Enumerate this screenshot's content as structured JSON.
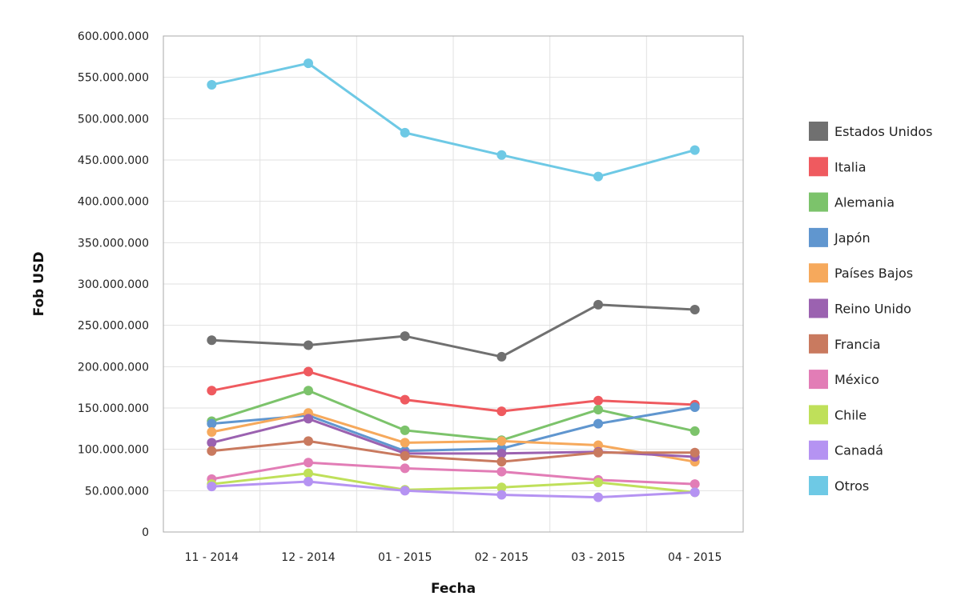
{
  "chart_data": {
    "type": "line",
    "xlabel": "Fecha",
    "ylabel": "Fob USD",
    "ylim": [
      0,
      600000000
    ],
    "y_ticks": [
      {
        "value": 0,
        "label": "0"
      },
      {
        "value": 50000000,
        "label": "50.000.000"
      },
      {
        "value": 100000000,
        "label": "100.000.000"
      },
      {
        "value": 150000000,
        "label": "150.000.000"
      },
      {
        "value": 200000000,
        "label": "200.000.000"
      },
      {
        "value": 250000000,
        "label": "250.000.000"
      },
      {
        "value": 300000000,
        "label": "300.000.000"
      },
      {
        "value": 350000000,
        "label": "350.000.000"
      },
      {
        "value": 400000000,
        "label": "400.000.000"
      },
      {
        "value": 450000000,
        "label": "450.000.000"
      },
      {
        "value": 500000000,
        "label": "500.000.000"
      },
      {
        "value": 550000000,
        "label": "550.000.000"
      },
      {
        "value": 600000000,
        "label": "600.000.000"
      }
    ],
    "categories": [
      "11 - 2014",
      "12 - 2014",
      "01 - 2015",
      "02 - 2015",
      "03 - 2015",
      "04 - 2015"
    ],
    "grid": true,
    "legend_position": "right",
    "series": [
      {
        "name": "Estados Unidos",
        "color": "#707070",
        "values": [
          232000000,
          226000000,
          237000000,
          212000000,
          275000000,
          269000000
        ]
      },
      {
        "name": "Italia",
        "color": "#ef5a5f",
        "values": [
          171000000,
          194000000,
          160000000,
          146000000,
          159000000,
          154000000
        ]
      },
      {
        "name": "Alemania",
        "color": "#7cc36b",
        "values": [
          134000000,
          171000000,
          123000000,
          111000000,
          148000000,
          122000000
        ]
      },
      {
        "name": "Japón",
        "color": "#6096cf",
        "values": [
          131000000,
          141000000,
          98000000,
          101000000,
          131000000,
          151000000
        ]
      },
      {
        "name": "Países Bajos",
        "color": "#f6a95c",
        "values": [
          121000000,
          144000000,
          108000000,
          110000000,
          105000000,
          85000000
        ]
      },
      {
        "name": "Reino Unido",
        "color": "#9b62b0",
        "values": [
          108000000,
          137000000,
          95000000,
          95000000,
          97000000,
          91000000
        ]
      },
      {
        "name": "Francia",
        "color": "#c97a5f",
        "values": [
          98000000,
          110000000,
          92000000,
          85000000,
          96000000,
          96000000
        ]
      },
      {
        "name": "México",
        "color": "#e27db6",
        "values": [
          64000000,
          84000000,
          77000000,
          73000000,
          63000000,
          58000000
        ]
      },
      {
        "name": "Chile",
        "color": "#bfe05a",
        "values": [
          58000000,
          71000000,
          51000000,
          54000000,
          60000000,
          48000000
        ]
      },
      {
        "name": "Canadá",
        "color": "#b593f2",
        "values": [
          55000000,
          61000000,
          50000000,
          45000000,
          42000000,
          48000000
        ]
      },
      {
        "name": "Otros",
        "color": "#6ec9e5",
        "values": [
          541000000,
          567000000,
          483000000,
          456000000,
          430000000,
          462000000
        ]
      }
    ]
  }
}
